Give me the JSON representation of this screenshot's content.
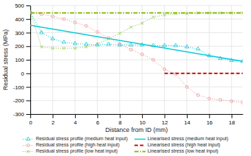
{
  "chart_data": {
    "type": "line",
    "xlabel": "Distance from ID (mm)",
    "ylabel": "Residual stress (MPa)",
    "xlim": [
      0,
      19
    ],
    "ylim": [
      -300,
      500
    ],
    "xticks": [
      0,
      2,
      4,
      6,
      8,
      10,
      12,
      14,
      16,
      18
    ],
    "yticks": [
      -300,
      -200,
      -100,
      0,
      100,
      200,
      300,
      400,
      500
    ],
    "grid": true,
    "legend": "bottom",
    "series": [
      {
        "name": "Residual stress profile (medium heat input)",
        "color": "#00c8d8",
        "line_style": "dotted",
        "marker": "triangle",
        "x": [
          0,
          1,
          2,
          3,
          4,
          5,
          6,
          7,
          8,
          9,
          10,
          11,
          12,
          13,
          14,
          15,
          16,
          17,
          18,
          19
        ],
        "values": [
          450,
          300,
          255,
          230,
          220,
          215,
          210,
          215,
          210,
          210,
          210,
          205,
          205,
          205,
          195,
          180,
          130,
          110,
          95,
          88
        ]
      },
      {
        "name": "Linearised stress (medium heat input)",
        "color": "#00c8d8",
        "line_style": "solid",
        "x": [
          0,
          19
        ],
        "values": [
          355,
          88
        ]
      },
      {
        "name": "Residual stress profile (high heat input)",
        "color": "#f49090",
        "line_style": "dotted",
        "marker": "circle",
        "x": [
          0,
          1,
          2,
          3,
          4,
          5,
          6,
          7,
          8,
          9,
          10,
          11,
          12,
          13,
          14,
          15,
          16,
          17,
          18,
          19
        ],
        "values": [
          450,
          435,
          420,
          400,
          375,
          350,
          305,
          260,
          215,
          175,
          140,
          100,
          30,
          -5,
          -100,
          -160,
          -185,
          -195,
          -205,
          -215
        ]
      },
      {
        "name": "Linearised stress (high heat input)",
        "color": "#cc0000",
        "line_style": "dashed",
        "x": [
          12,
          19
        ],
        "values": [
          0,
          0
        ]
      },
      {
        "name": "Residual stress profile (low heat input)",
        "color": "#88c840",
        "line_style": "dotted",
        "marker": "x",
        "x": [
          0,
          1,
          2,
          3,
          4,
          5,
          6,
          7,
          8,
          9,
          10,
          11,
          12,
          13,
          14,
          15,
          16,
          17,
          18,
          19
        ],
        "values": [
          450,
          195,
          185,
          185,
          185,
          195,
          215,
          255,
          295,
          340,
          370,
          415,
          430,
          440,
          440,
          445,
          445,
          445,
          445,
          445
        ]
      },
      {
        "name": "Linearised stress (low heat input)",
        "color": "#88b800",
        "line_style": "dashdot",
        "x": [
          0,
          19
        ],
        "values": [
          445,
          445
        ]
      }
    ]
  }
}
